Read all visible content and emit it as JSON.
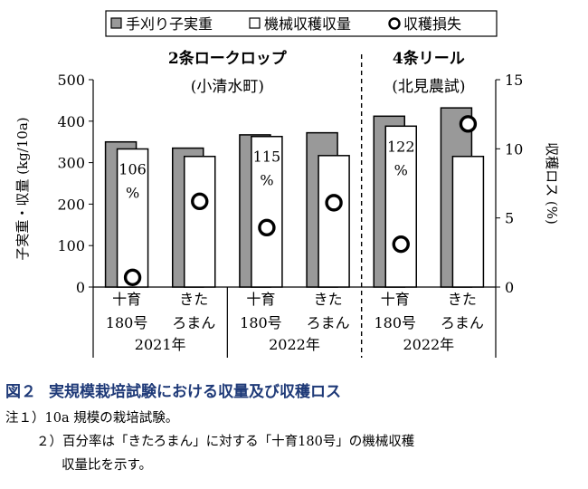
{
  "chart_data": {
    "type": "bar",
    "legend": [
      {
        "name": "手刈り子実重",
        "marker": "gray-square",
        "color": "#999999"
      },
      {
        "name": "機械収穫収量",
        "marker": "white-square",
        "color": "#ffffff"
      },
      {
        "name": "収穫損失",
        "marker": "circle",
        "color": "#ffffff"
      }
    ],
    "legend_placement": "top",
    "ylabel": "子実重・収量 (kg/10a)",
    "y2label": "収穫ロス (%)",
    "ylim": [
      0,
      500
    ],
    "y2lim": [
      0,
      15
    ],
    "yticks": [
      "0",
      "100",
      "200",
      "300",
      "400",
      "500"
    ],
    "y2ticks": [
      "0",
      "5",
      "10",
      "15"
    ],
    "groups": [
      {
        "name": "2条ロークロップ",
        "sub": "(小清水町)"
      },
      {
        "name": "4条リール",
        "sub": "(北見農試)"
      }
    ],
    "years": [
      "2021年",
      "2022年",
      "2022年"
    ],
    "categories": [
      {
        "line1": "十育",
        "line2": "180号"
      },
      {
        "line1": "きた",
        "line2": "ろまん"
      },
      {
        "line1": "十育",
        "line2": "180号"
      },
      {
        "line1": "きた",
        "line2": "ろまん"
      },
      {
        "line1": "十育",
        "line2": "180号"
      },
      {
        "line1": "きた",
        "line2": "ろまん"
      }
    ],
    "series": [
      {
        "name": "手刈り子実重",
        "values": [
          350,
          335,
          367,
          372,
          412,
          432
        ]
      },
      {
        "name": "機械収穫収量",
        "values": [
          333,
          315,
          363,
          317,
          388,
          315
        ]
      },
      {
        "name": "収穫損失",
        "axis": "right",
        "values": [
          0.7,
          6.2,
          4.3,
          6.1,
          3.1,
          11.8
        ]
      }
    ],
    "annotations": [
      {
        "category": 0,
        "value": "106",
        "unit": "%"
      },
      {
        "category": 2,
        "value": "115",
        "unit": "%"
      },
      {
        "category": 4,
        "value": "122",
        "unit": "%"
      }
    ],
    "grid": false
  },
  "caption": {
    "fig_no": "図２",
    "title": "実規模栽培試験における収量及び収穫ロス",
    "notes": [
      "注１）10a 規模の栽培試験。",
      "２）百分率は「きたろまん」に対する「十育180号」の機械収穫",
      "収量比を示す。"
    ]
  }
}
